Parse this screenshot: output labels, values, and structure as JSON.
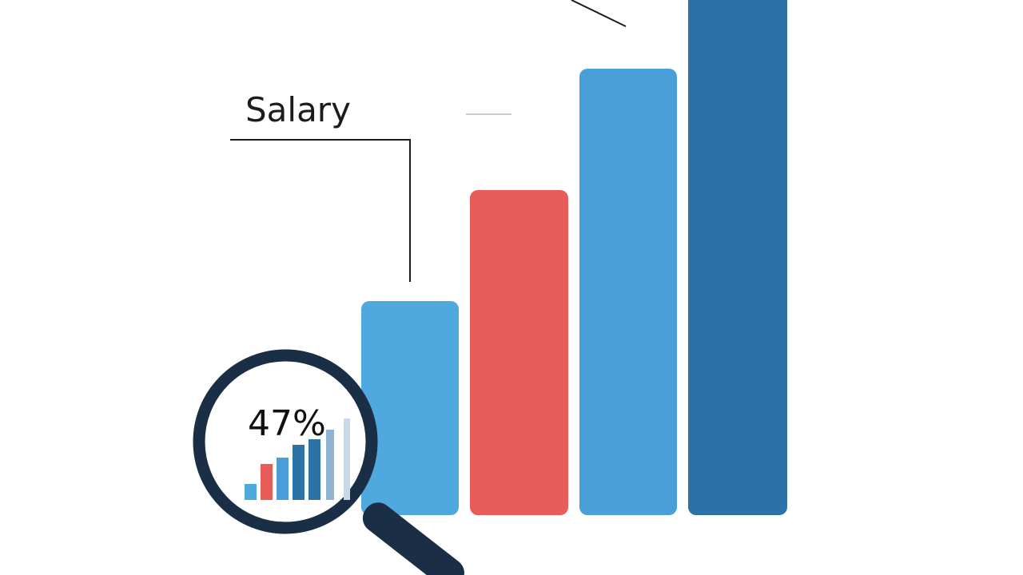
{
  "title": "Salary",
  "magnifier": {
    "label": "47%"
  }
}
